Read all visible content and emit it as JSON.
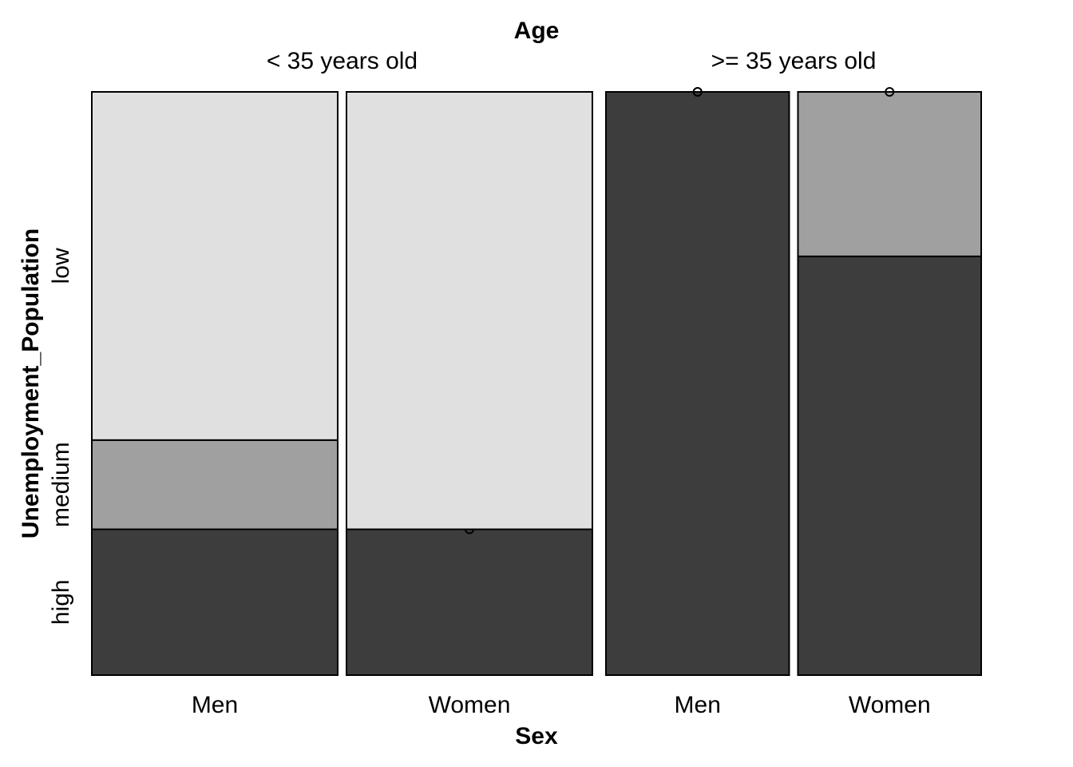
{
  "chart_data": {
    "type": "mosaic",
    "title": "Age",
    "x_label": "Sex",
    "y_label": "Unemployment_Population",
    "levels": [
      "high",
      "medium",
      "low"
    ],
    "colors": [
      "#3d3d3d",
      "#a0a0a0",
      "#e0e0e0"
    ],
    "groups": [
      {
        "name": "<  35 years old",
        "width": 0.573,
        "columns": [
          {
            "name": "Men",
            "width": 0.5,
            "values": [
              0.25,
              0.153,
              0.597
            ]
          },
          {
            "name": "Women",
            "width": 0.5,
            "values": [
              0.25,
              0,
              0.75
            ]
          }
        ]
      },
      {
        "name": ">= 35 years old",
        "width": 0.427,
        "columns": [
          {
            "name": "Men",
            "width": 0.5,
            "values": [
              1,
              0,
              0
            ]
          },
          {
            "name": "Women",
            "width": 0.5,
            "values": [
              0.718,
              0.282,
              0
            ]
          }
        ]
      }
    ]
  }
}
